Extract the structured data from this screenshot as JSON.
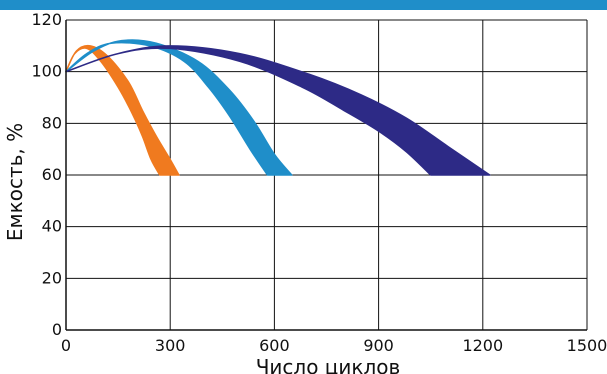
{
  "chart_data": {
    "type": "area",
    "title": "",
    "xlabel": "Число циклов",
    "ylabel": "Емкость, %",
    "xlim": [
      0,
      1500
    ],
    "ylim": [
      0,
      120
    ],
    "x_ticks": [
      "0",
      "300",
      "600",
      "900",
      "1200",
      "1500"
    ],
    "y_ticks": [
      "0",
      "20",
      "40",
      "60",
      "80",
      "100",
      "120"
    ],
    "grid": true,
    "series": [
      {
        "color": "#f07a1f",
        "upper": [
          [
            0,
            100
          ],
          [
            30,
            108
          ],
          [
            70,
            110
          ],
          [
            120,
            106
          ],
          [
            180,
            96
          ],
          [
            220,
            85
          ],
          [
            260,
            75
          ],
          [
            300,
            66
          ],
          [
            325,
            60
          ]
        ],
        "lower": [
          [
            0,
            100
          ],
          [
            25,
            107
          ],
          [
            60,
            109
          ],
          [
            100,
            104
          ],
          [
            150,
            94
          ],
          [
            190,
            84
          ],
          [
            220,
            75
          ],
          [
            245,
            66
          ],
          [
            270,
            60
          ]
        ]
      },
      {
        "color": "#1f8ec9",
        "upper": [
          [
            0,
            100
          ],
          [
            80,
            108
          ],
          [
            160,
            112
          ],
          [
            260,
            111
          ],
          [
            380,
            104
          ],
          [
            470,
            93
          ],
          [
            540,
            81
          ],
          [
            600,
            68
          ],
          [
            650,
            60
          ]
        ],
        "lower": [
          [
            0,
            100
          ],
          [
            60,
            107
          ],
          [
            130,
            111
          ],
          [
            240,
            110
          ],
          [
            340,
            104
          ],
          [
            410,
            94
          ],
          [
            470,
            83
          ],
          [
            530,
            70
          ],
          [
            580,
            60
          ]
        ]
      },
      {
        "color": "#2d2a86",
        "upper": [
          [
            0,
            100
          ],
          [
            150,
            107
          ],
          [
            300,
            110
          ],
          [
            500,
            107
          ],
          [
            700,
            99
          ],
          [
            850,
            91
          ],
          [
            980,
            82
          ],
          [
            1100,
            71
          ],
          [
            1220,
            60
          ]
        ],
        "lower": [
          [
            0,
            100
          ],
          [
            150,
            107
          ],
          [
            300,
            109
          ],
          [
            500,
            104
          ],
          [
            680,
            94
          ],
          [
            800,
            85
          ],
          [
            900,
            77
          ],
          [
            980,
            69
          ],
          [
            1050,
            60
          ]
        ]
      }
    ]
  }
}
